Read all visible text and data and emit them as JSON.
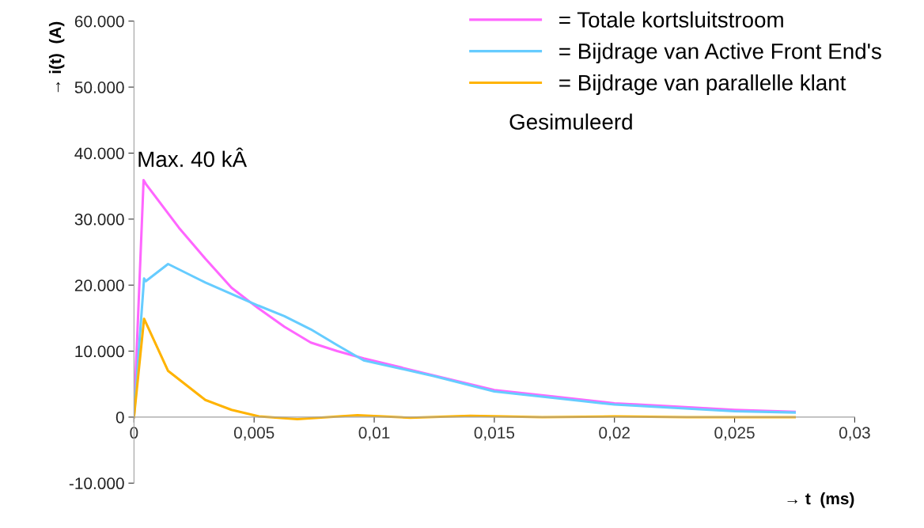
{
  "chart_data": {
    "type": "line",
    "xlabel": "→ t  (ms)",
    "ylabel": "→ i(t)  (A)",
    "xlim": [
      0,
      0.03
    ],
    "ylim": [
      -10000,
      60000
    ],
    "xticks": [
      0,
      {
        "value": 0.005,
        "label": "0,005"
      },
      {
        "value": 0.01,
        "label": "0,01"
      },
      {
        "value": 0.015,
        "label": "0,015"
      },
      {
        "value": 0.02,
        "label": "0,02"
      },
      {
        "value": 0.025,
        "label": "0,025"
      },
      {
        "value": 0.03,
        "label": "0,03"
      }
    ],
    "yticks": [
      {
        "value": -10000,
        "label": "-10.000"
      },
      0,
      {
        "value": 10000,
        "label": "10.000"
      },
      {
        "value": 20000,
        "label": "20.000"
      },
      {
        "value": 30000,
        "label": "30.000"
      },
      {
        "value": 40000,
        "label": "40.000"
      },
      {
        "value": 50000,
        "label": "50.000"
      },
      {
        "value": 60000,
        "label": "60.000"
      }
    ],
    "grid": false,
    "legend": "top right",
    "marker": "none",
    "line_style": "solid",
    "annotations": [
      {
        "text": "Max. 40 kÂ",
        "x": 0.0004,
        "y": 35900
      },
      "Gesimuleerd"
    ],
    "series": [
      {
        "name": "= Totale kortsluitstroom",
        "color": "#ff66ff",
        "x": [
          0,
          0.0004,
          0.0005,
          0.00187,
          0.00297,
          0.00406,
          0.00517,
          0.00626,
          0.00736,
          0.00846,
          0.00956,
          0.0125,
          0.015,
          0.0175,
          0.02,
          0.0225,
          0.025,
          0.0275
        ],
        "values": [
          0,
          35900,
          35300,
          28700,
          24000,
          19600,
          16500,
          13700,
          11300,
          10000,
          8900,
          6300,
          4100,
          3100,
          2100,
          1600,
          1100,
          800
        ]
      },
      {
        "name": "= Bijdrage van Active Front End's",
        "color": "#66ccff",
        "x": [
          0,
          0.00042,
          0.00049,
          0.00142,
          0.00297,
          0.00517,
          0.00626,
          0.00736,
          0.00846,
          0.00956,
          0.0125,
          0.015,
          0.0175,
          0.02,
          0.0225,
          0.025,
          0.0275
        ],
        "values": [
          0,
          21000,
          20600,
          23200,
          20400,
          16900,
          15300,
          13300,
          10900,
          8600,
          6200,
          3900,
          2900,
          1900,
          1400,
          900,
          700
        ]
      },
      {
        "name": "= Bijdrage van parallelle klant",
        "color": "#ffb300",
        "x": [
          0,
          0.00042,
          0.00142,
          0.00297,
          0.00406,
          0.0052,
          0.0068,
          0.0093,
          0.0115,
          0.014,
          0.017,
          0.02,
          0.023,
          0.0275
        ],
        "values": [
          0,
          14900,
          7000,
          2600,
          1100,
          100,
          -300,
          300,
          -100,
          200,
          0,
          100,
          0,
          0
        ]
      }
    ]
  }
}
